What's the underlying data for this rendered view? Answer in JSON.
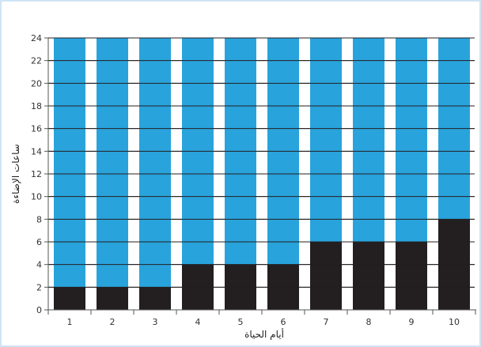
{
  "chart_data": {
    "type": "bar",
    "stacked": true,
    "categories": [
      "1",
      "2",
      "3",
      "4",
      "5",
      "6",
      "7",
      "8",
      "9",
      "10"
    ],
    "series": [
      {
        "values": [
          2,
          2,
          2,
          4,
          4,
          4,
          6,
          6,
          6,
          8
        ],
        "color": "#231f20"
      },
      {
        "values": [
          22,
          22,
          22,
          20,
          20,
          20,
          18,
          18,
          18,
          16
        ],
        "color": "#29a3dc"
      }
    ],
    "xlabel": "أيام الحياة",
    "ylabel": "ساعات الإضاءة",
    "ylim": [
      0,
      24
    ],
    "yticks": [
      0,
      2,
      4,
      6,
      8,
      10,
      12,
      14,
      16,
      18,
      20,
      22,
      24
    ],
    "grid": "horizontal"
  },
  "colors": {
    "frame_border": "#cfe4f5",
    "grid": "#231f20",
    "axis": "#555555"
  }
}
